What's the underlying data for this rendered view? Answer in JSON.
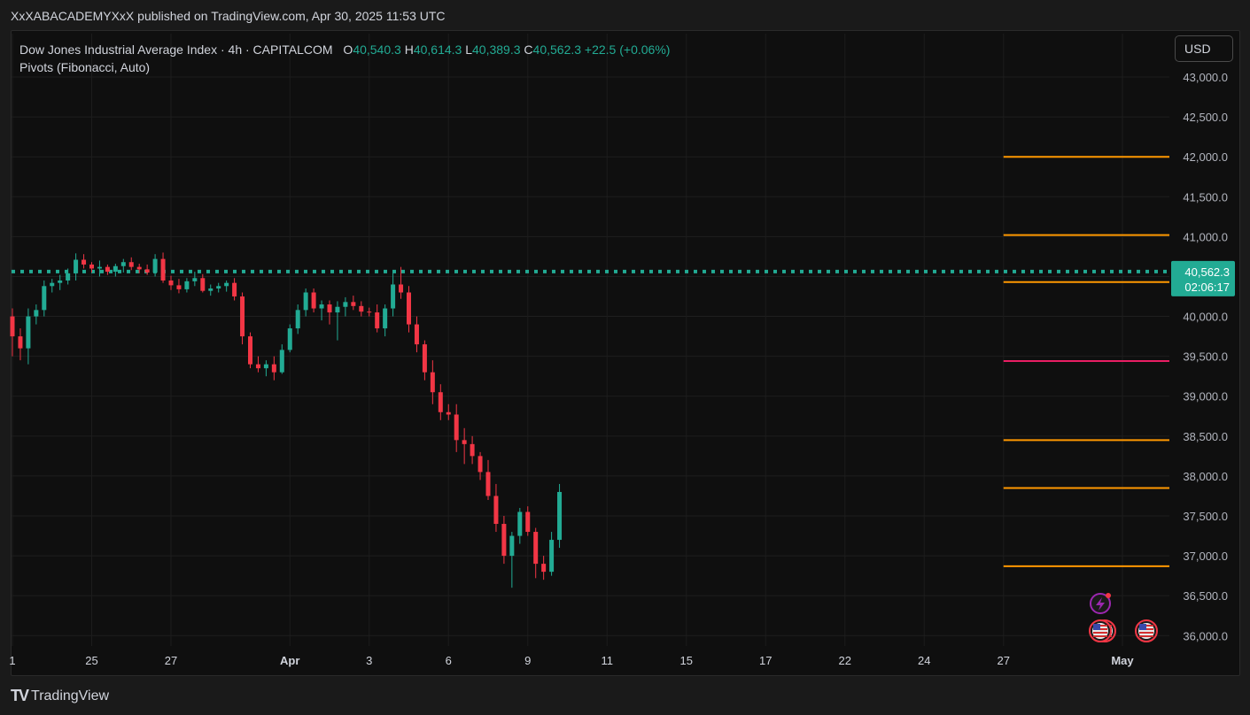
{
  "header": {
    "attribution": "XxXABACADEMYXxX published on TradingView.com, Apr 30, 2025 11:53 UTC"
  },
  "legend": {
    "symbol": "Dow Jones Industrial Average Index · 4h · CAPITALCOM",
    "open_label": "O",
    "open": "40,540.3",
    "high_label": "H",
    "high": "40,614.3",
    "low_label": "L",
    "low": "40,389.3",
    "close_label": "C",
    "close": "40,562.3",
    "change": "+22.5 (+0.06%)",
    "indicator": "Pivots (Fibonacci, Auto)"
  },
  "currency": "USD",
  "price_badge": {
    "price": "40,562.3",
    "countdown": "02:06:17"
  },
  "footer": {
    "brand": "TradingView"
  },
  "colors": {
    "up": "#22ab94",
    "down": "#f23645",
    "pivot": "#ff9800",
    "pivot_center": "#e91e63",
    "background": "#0f0f0f"
  },
  "chart_data": {
    "type": "candlestick",
    "y_ticks": [
      36000,
      36500,
      37000,
      37500,
      38000,
      38500,
      39000,
      39500,
      40000,
      40500,
      41000,
      41500,
      42000,
      42500,
      43000
    ],
    "y_tick_labels": [
      "36,000.0",
      "36,500.0",
      "37,000.0",
      "37,500.0",
      "38,000.0",
      "38,500.0",
      "39,000.0",
      "39,500.0",
      "40,000.0",
      "40,500.0",
      "41,000.0",
      "41,500.0",
      "42,000.0",
      "42,500.0",
      "43,000.0"
    ],
    "ylim": [
      35870,
      43100
    ],
    "x_tick_labels": [
      "1",
      "25",
      "27",
      "Apr",
      "3",
      "6",
      "9",
      "11",
      "15",
      "17",
      "22",
      "24",
      "27",
      "May"
    ],
    "x_tick_index": [
      0,
      10,
      20,
      35,
      45,
      55,
      65,
      75,
      85,
      95,
      105,
      115,
      125,
      140
    ],
    "last_price": 40562.3,
    "pivot_levels": [
      42000,
      41020,
      40430,
      39440,
      38450,
      37850,
      36870
    ],
    "candles": [
      [
        40000,
        40100,
        39500,
        39750
      ],
      [
        39750,
        39850,
        39450,
        39600
      ],
      [
        39600,
        40100,
        39400,
        40000
      ],
      [
        40000,
        40150,
        39900,
        40080
      ],
      [
        40080,
        40450,
        40000,
        40380
      ],
      [
        40380,
        40470,
        40300,
        40420
      ],
      [
        40420,
        40520,
        40330,
        40450
      ],
      [
        40450,
        40600,
        40400,
        40540
      ],
      [
        40540,
        40790,
        40450,
        40710
      ],
      [
        40710,
        40780,
        40600,
        40650
      ],
      [
        40650,
        40680,
        40550,
        40600
      ],
      [
        40600,
        40700,
        40500,
        40620
      ],
      [
        40620,
        40650,
        40520,
        40560
      ],
      [
        40560,
        40660,
        40500,
        40630
      ],
      [
        40630,
        40720,
        40550,
        40680
      ],
      [
        40680,
        40740,
        40580,
        40620
      ],
      [
        40620,
        40660,
        40540,
        40590
      ],
      [
        40590,
        40650,
        40520,
        40550
      ],
      [
        40550,
        40780,
        40500,
        40720
      ],
      [
        40720,
        40800,
        40420,
        40450
      ],
      [
        40450,
        40510,
        40330,
        40390
      ],
      [
        40390,
        40470,
        40290,
        40340
      ],
      [
        40340,
        40480,
        40300,
        40440
      ],
      [
        40440,
        40560,
        40380,
        40480
      ],
      [
        40480,
        40530,
        40300,
        40320
      ],
      [
        40320,
        40400,
        40260,
        40350
      ],
      [
        40350,
        40420,
        40300,
        40380
      ],
      [
        40380,
        40450,
        40310,
        40420
      ],
      [
        40420,
        40480,
        40200,
        40250
      ],
      [
        40250,
        40300,
        39650,
        39750
      ],
      [
        39750,
        39800,
        39350,
        39400
      ],
      [
        39400,
        39500,
        39300,
        39350
      ],
      [
        39350,
        39450,
        39250,
        39400
      ],
      [
        39400,
        39500,
        39200,
        39300
      ],
      [
        39300,
        39650,
        39280,
        39580
      ],
      [
        39580,
        39900,
        39550,
        39850
      ],
      [
        39850,
        40150,
        39780,
        40080
      ],
      [
        40080,
        40350,
        40000,
        40300
      ],
      [
        40300,
        40350,
        40050,
        40100
      ],
      [
        40100,
        40200,
        39950,
        40150
      ],
      [
        40150,
        40200,
        39900,
        40050
      ],
      [
        40050,
        40190,
        39700,
        40120
      ],
      [
        40120,
        40240,
        40000,
        40180
      ],
      [
        40180,
        40260,
        40080,
        40130
      ],
      [
        40130,
        40190,
        40000,
        40060
      ],
      [
        40060,
        40110,
        40000,
        40050
      ],
      [
        40050,
        40150,
        39800,
        39850
      ],
      [
        39850,
        40150,
        39750,
        40100
      ],
      [
        40100,
        40550,
        40000,
        40400
      ],
      [
        40400,
        40620,
        40220,
        40300
      ],
      [
        40300,
        40380,
        39800,
        39900
      ],
      [
        39900,
        40000,
        39550,
        39650
      ],
      [
        39650,
        39700,
        39200,
        39300
      ],
      [
        39300,
        39450,
        38900,
        39050
      ],
      [
        39050,
        39150,
        38700,
        38800
      ],
      [
        38800,
        38900,
        38700,
        38770
      ],
      [
        38770,
        38900,
        38300,
        38450
      ],
      [
        38450,
        38600,
        38150,
        38400
      ],
      [
        38400,
        38500,
        38150,
        38250
      ],
      [
        38250,
        38300,
        37950,
        38050
      ],
      [
        38050,
        38200,
        37700,
        37750
      ],
      [
        37750,
        37900,
        37300,
        37400
      ],
      [
        37400,
        37500,
        36900,
        37000
      ],
      [
        37000,
        37300,
        36600,
        37250
      ],
      [
        37250,
        37600,
        37150,
        37550
      ],
      [
        37550,
        37620,
        37250,
        37300
      ],
      [
        37300,
        37350,
        36720,
        36900
      ],
      [
        36900,
        37000,
        36700,
        36800
      ],
      [
        36800,
        37300,
        36750,
        37200
      ],
      [
        37200,
        37900,
        37100,
        37800
      ]
    ]
  }
}
